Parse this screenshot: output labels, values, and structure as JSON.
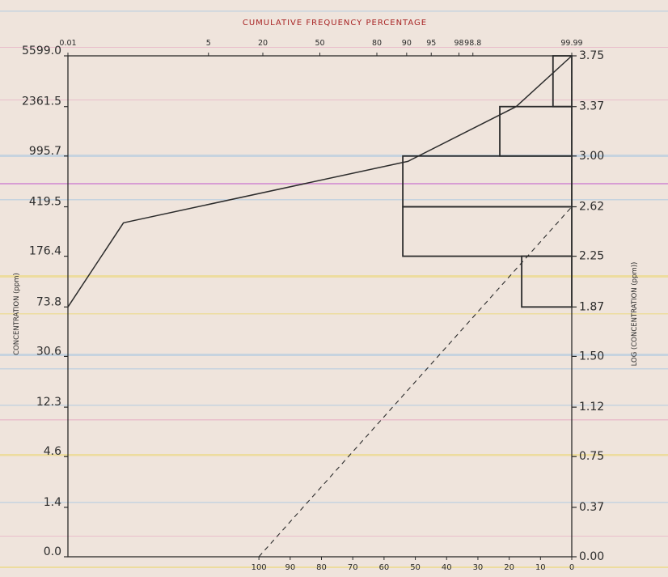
{
  "chart_data": {
    "type": "line",
    "title": "CUMULATIVE FREQUENCY PERCENTAGE",
    "ylabel_left": "CONCENTRATION (ppm)",
    "ylabel_right": "LOG (CONCENTRATION (ppm))",
    "left_ticks": [
      "0.0",
      "1.4",
      "4.6",
      "12.3",
      "30.6",
      "73.8",
      "176.4",
      "419.5",
      "995.7",
      "2361.5",
      "5599.0"
    ],
    "right_ticks": [
      "0.00",
      "0.37",
      "0.75",
      "1.12",
      "1.50",
      "1.87",
      "2.25",
      "2.62",
      "3.00",
      "3.37",
      "3.75"
    ],
    "right_tick_values": [
      0.0,
      0.37,
      0.75,
      1.12,
      1.5,
      1.87,
      2.25,
      2.62,
      3.0,
      3.37,
      3.75
    ],
    "ylim_log": [
      0.0,
      3.75
    ],
    "top_ticks": [
      "0.01",
      "5",
      "20",
      "50",
      "80",
      "90",
      "95",
      "98",
      "98.8",
      "99.99"
    ],
    "top_tick_probits": [
      -3.72,
      -1.645,
      -0.842,
      0.0,
      0.842,
      1.282,
      1.645,
      2.054,
      2.26,
      3.72
    ],
    "bottom_ticks": [
      "100",
      "90",
      "80",
      "70",
      "60",
      "50",
      "40",
      "30",
      "20",
      "10",
      "0"
    ],
    "bottom_tick_values": [
      100,
      90,
      80,
      70,
      60,
      50,
      40,
      30,
      20,
      10,
      0
    ],
    "series": [
      {
        "style": "solid",
        "x_probit": [
          -3.72,
          -2.9,
          1.3,
          2.9,
          3.72
        ],
        "y_log": [
          1.87,
          2.5,
          2.96,
          3.37,
          3.75
        ]
      },
      {
        "style": "dashed",
        "x_probit": [
          -0.9,
          3.72
        ],
        "y_log": [
          0.0,
          2.62
        ]
      },
      {
        "style": "dashed",
        "x_probit": [
          3.72,
          3.72
        ],
        "y_log": [
          2.62,
          3.75
        ]
      }
    ],
    "histogram": {
      "bins_log": [
        [
          1.87,
          2.25
        ],
        [
          2.25,
          2.62
        ],
        [
          2.62,
          3.0
        ],
        [
          3.0,
          3.37
        ],
        [
          3.37,
          3.75
        ]
      ],
      "percent": [
        16,
        54,
        54,
        23,
        6
      ]
    },
    "colors": {
      "background": "#efe4dc",
      "ink": "#2b2b2b",
      "title": "#a82424",
      "stripe_blue": "#b8cde0",
      "stripe_pink": "#e7b2c6",
      "stripe_yellow": "#ecd98a",
      "stripe_magenta": "#cf86d2"
    }
  }
}
